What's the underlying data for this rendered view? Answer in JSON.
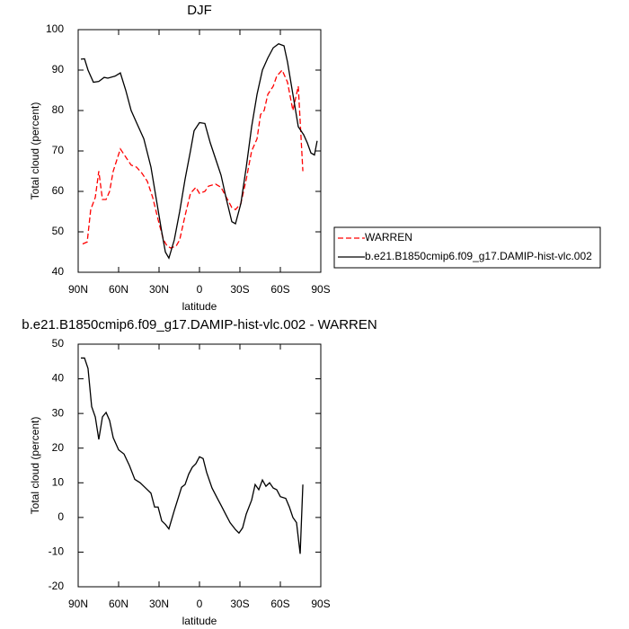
{
  "chart_data": [
    {
      "type": "line",
      "title": "DJF",
      "xlabel": "latitude",
      "ylabel": "Total cloud (percent)",
      "xlim": [
        90,
        -90
      ],
      "ylim": [
        40,
        100
      ],
      "xticks": [
        {
          "value": 90,
          "label": "90N"
        },
        {
          "value": 60,
          "label": "60N"
        },
        {
          "value": 30,
          "label": "30N"
        },
        0,
        {
          "value": -30,
          "label": "30S"
        },
        {
          "value": -60,
          "label": "60S"
        },
        {
          "value": -90,
          "label": "90S"
        }
      ],
      "yticks": [
        40,
        50,
        60,
        70,
        80,
        90,
        100
      ],
      "legend": "right",
      "series": [
        {
          "name": "WARREN",
          "color": "#ff0000",
          "line_style": "dashed",
          "x": [
            86.7,
            83.3,
            80.7,
            77.3,
            74.7,
            72,
            69.3,
            66.7,
            64,
            58.7,
            54.7,
            50.7,
            46.7,
            42.7,
            38.7,
            34.7,
            30.7,
            26.7,
            24,
            21.3,
            17.3,
            14.7,
            10.7,
            6.7,
            2.7,
            0,
            -4,
            -6.7,
            -12,
            -16,
            -20,
            -24,
            -26.7,
            -30.7,
            -34.7,
            -38.7,
            -42.7,
            -45.3,
            -48,
            -50.7,
            -54.7,
            -57.3,
            -61.3,
            -65.3,
            -69.3,
            -73.3,
            -76.7
          ],
          "values": [
            47,
            47.5,
            55.5,
            58.5,
            65,
            58,
            58,
            60,
            65,
            70.5,
            68.5,
            66.5,
            66,
            64.5,
            62.5,
            58.5,
            53,
            48,
            46.5,
            46,
            46.5,
            48,
            54,
            59.5,
            61,
            59.5,
            60,
            61.3,
            61.8,
            61,
            58.5,
            56,
            55.5,
            57,
            63,
            70,
            73,
            79,
            80,
            84,
            86,
            88.5,
            90,
            87,
            80,
            86,
            65
          ]
        },
        {
          "name": "b.e21.B1850cmip6.f09_g17.DAMIP-hist-vlc.002",
          "color": "#000000",
          "line_style": "solid",
          "x": [
            88,
            85.3,
            82.7,
            78.7,
            74.7,
            70.7,
            68,
            62.7,
            58.7,
            54.7,
            50.7,
            46.7,
            41.3,
            36,
            32,
            28,
            25.3,
            22.7,
            18.7,
            14.7,
            10.7,
            6.7,
            4,
            0,
            -4,
            -8,
            -12,
            -16,
            -20,
            -24,
            -26.7,
            -30.7,
            -34.7,
            -38.7,
            -42.7,
            -46.7,
            -50.7,
            -54.7,
            -58.7,
            -62.7,
            -65.3,
            -69.3,
            -73.3,
            -77.3,
            -80,
            -82.7,
            -85.3,
            -87.3
          ],
          "values": [
            92.7,
            92.8,
            90,
            87,
            87.2,
            88.2,
            88,
            88.5,
            89.3,
            85,
            80,
            77,
            73,
            66,
            58,
            50,
            45,
            43.5,
            48,
            55,
            63,
            70,
            75,
            77,
            76.8,
            72,
            68,
            64,
            58,
            52.5,
            52,
            57,
            66,
            76,
            84,
            90,
            93,
            95.5,
            96.5,
            96,
            92,
            84,
            76,
            74,
            72,
            69.5,
            69,
            72.5
          ]
        }
      ]
    },
    {
      "type": "line",
      "title": "b.e21.B1850cmip6.f09_g17.DAMIP-hist-vlc.002 - WARREN",
      "xlabel": "latitude",
      "ylabel": "Total cloud (percent)",
      "xlim": [
        90,
        -90
      ],
      "ylim": [
        -20,
        50
      ],
      "xticks": [
        {
          "value": 90,
          "label": "90N"
        },
        {
          "value": 60,
          "label": "60N"
        },
        {
          "value": 30,
          "label": "30N"
        },
        0,
        {
          "value": -30,
          "label": "30S"
        },
        {
          "value": -60,
          "label": "60S"
        },
        {
          "value": -90,
          "label": "90S"
        }
      ],
      "yticks": [
        -20,
        -10,
        0,
        10,
        20,
        30,
        40,
        50
      ],
      "color": "#000000",
      "x": [
        88,
        85.3,
        82.7,
        80,
        77.3,
        74.7,
        72,
        69.3,
        66.7,
        64,
        60,
        56,
        52,
        48,
        44,
        40,
        36,
        33.3,
        30.7,
        28,
        25.3,
        22.7,
        18.7,
        13.3,
        10.7,
        8,
        5.3,
        2.7,
        0,
        -2.7,
        -5.3,
        -9.3,
        -13.3,
        -16,
        -20,
        -22.7,
        -26.7,
        -29.3,
        -32,
        -34.7,
        -38.7,
        -41.3,
        -44,
        -46.7,
        -49.3,
        -52,
        -54.7,
        -57.3,
        -60,
        -64,
        -66.7,
        -69.3,
        -72,
        -74.7,
        -76.7
      ],
      "values": [
        46,
        46,
        43,
        32,
        29,
        22.5,
        29,
        30.3,
        28,
        23,
        19.5,
        18.3,
        15,
        11,
        10,
        8.5,
        7,
        3,
        3,
        -1,
        -2,
        -3.3,
        2,
        8.7,
        9.5,
        12.5,
        14.5,
        15.5,
        17.5,
        17,
        13,
        8.5,
        5.5,
        3.5,
        0.5,
        -1.5,
        -3.5,
        -4.5,
        -3,
        1,
        5,
        9.5,
        8,
        10.8,
        9,
        10,
        8.5,
        8,
        6,
        5.5,
        3,
        0,
        -1.5,
        -10.5,
        9.5
      ]
    }
  ]
}
